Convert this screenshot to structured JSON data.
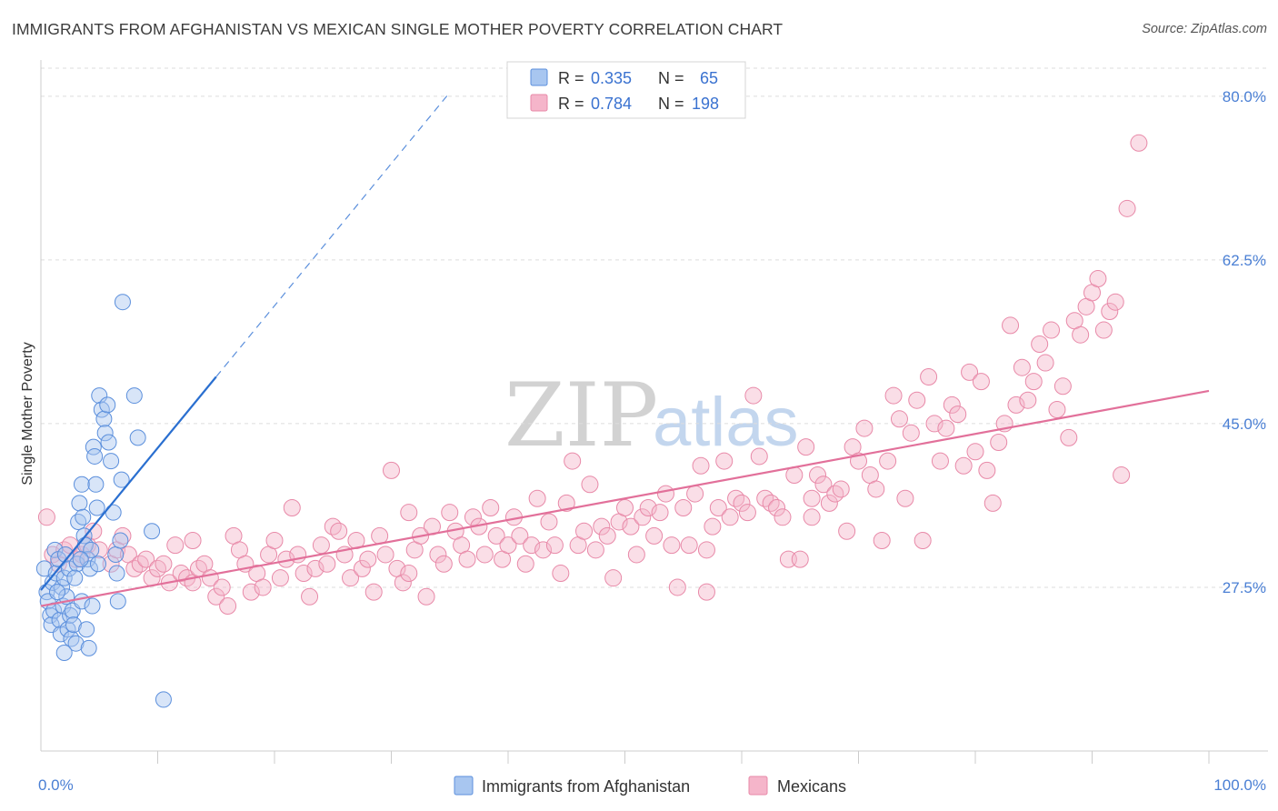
{
  "header": {
    "title": "IMMIGRANTS FROM AFGHANISTAN VS MEXICAN SINGLE MOTHER POVERTY CORRELATION CHART",
    "source": "Source: ZipAtlas.com"
  },
  "watermark": {
    "zip": "ZIP",
    "atlas": "atlas"
  },
  "colors": {
    "blue_fill": "#a8c6f0",
    "blue_stroke": "#5b8fdc",
    "blue_line": "#2a6fd0",
    "pink_fill": "#f5b5ca",
    "pink_stroke": "#e889a8",
    "pink_line": "#e2709a",
    "tick_text": "#4a7fd4",
    "grid": "#dddddd"
  },
  "legend": {
    "r_label": "R =",
    "n_label": "N =",
    "series": [
      {
        "name": "Immigrants from Afghanistan",
        "r": "0.335",
        "n": "65"
      },
      {
        "name": "Mexicans",
        "r": "0.784",
        "n": "198"
      }
    ]
  },
  "chart_data": {
    "type": "scatter",
    "title": "IMMIGRANTS FROM AFGHANISTAN VS MEXICAN SINGLE MOTHER POVERTY CORRELATION CHART",
    "xlabel": "",
    "ylabel": "Single Mother Poverty",
    "xlim": [
      0,
      100
    ],
    "ylim": [
      10,
      83
    ],
    "x_tick_labels": [
      {
        "value": 0,
        "label": "0.0%"
      },
      {
        "value": 100,
        "label": "100.0%"
      }
    ],
    "x_minor_ticks": [
      10,
      20,
      30,
      40,
      50,
      60,
      70,
      80,
      90
    ],
    "y_ticks": [
      {
        "value": 27.5,
        "label": "27.5%"
      },
      {
        "value": 45.0,
        "label": "45.0%"
      },
      {
        "value": 62.5,
        "label": "62.5%"
      },
      {
        "value": 80.0,
        "label": "80.0%"
      }
    ],
    "grid": true,
    "legend_position": "top-center",
    "series": [
      {
        "name": "Immigrants from Afghanistan",
        "r": 0.335,
        "n": 65,
        "trend": {
          "x0": 0,
          "y0": 27.2,
          "x1": 15,
          "y1": 50.0,
          "dash_to_x": 35,
          "dash_to_y": 80.4
        },
        "points": [
          [
            0.3,
            29.5
          ],
          [
            0.5,
            27.0
          ],
          [
            0.6,
            26.0
          ],
          [
            0.8,
            24.5
          ],
          [
            0.9,
            23.5
          ],
          [
            1.0,
            28.0
          ],
          [
            1.1,
            25.0
          ],
          [
            1.2,
            31.5
          ],
          [
            1.3,
            29.0
          ],
          [
            1.5,
            30.5
          ],
          [
            1.6,
            24.0
          ],
          [
            1.7,
            22.5
          ],
          [
            1.8,
            27.5
          ],
          [
            1.9,
            25.5
          ],
          [
            2.0,
            28.5
          ],
          [
            2.1,
            31.0
          ],
          [
            2.2,
            26.5
          ],
          [
            2.3,
            23.0
          ],
          [
            2.4,
            29.5
          ],
          [
            2.5,
            24.5
          ],
          [
            2.6,
            22.0
          ],
          [
            2.7,
            25.0
          ],
          [
            2.8,
            23.5
          ],
          [
            3.0,
            21.5
          ],
          [
            3.1,
            30.0
          ],
          [
            3.2,
            34.5
          ],
          [
            3.3,
            36.5
          ],
          [
            3.5,
            38.5
          ],
          [
            3.6,
            35.0
          ],
          [
            3.7,
            33.0
          ],
          [
            3.8,
            32.0
          ],
          [
            4.0,
            30.5
          ],
          [
            4.2,
            29.5
          ],
          [
            4.3,
            31.5
          ],
          [
            4.5,
            42.5
          ],
          [
            4.6,
            41.5
          ],
          [
            4.7,
            38.5
          ],
          [
            4.8,
            36.0
          ],
          [
            4.9,
            30.0
          ],
          [
            5.0,
            48.0
          ],
          [
            5.2,
            46.5
          ],
          [
            5.4,
            45.5
          ],
          [
            5.5,
            44.0
          ],
          [
            5.7,
            47.0
          ],
          [
            5.8,
            43.0
          ],
          [
            6.0,
            41.0
          ],
          [
            6.2,
            35.5
          ],
          [
            6.4,
            31.0
          ],
          [
            6.5,
            29.0
          ],
          [
            6.6,
            26.0
          ],
          [
            3.5,
            26.0
          ],
          [
            3.9,
            23.0
          ],
          [
            4.1,
            21.0
          ],
          [
            4.4,
            25.5
          ],
          [
            2.9,
            28.5
          ],
          [
            6.8,
            32.5
          ],
          [
            6.9,
            39.0
          ],
          [
            3.4,
            30.5
          ],
          [
            1.4,
            27.0
          ],
          [
            2.0,
            20.5
          ],
          [
            7.0,
            58.0
          ],
          [
            8.0,
            48.0
          ],
          [
            8.3,
            43.5
          ],
          [
            9.5,
            33.5
          ],
          [
            10.5,
            15.5
          ]
        ]
      },
      {
        "name": "Mexicans",
        "r": 0.784,
        "n": 198,
        "trend": {
          "x0": 0,
          "y0": 25.5,
          "x1": 100,
          "y1": 48.5
        },
        "points": [
          [
            0.5,
            35.0
          ],
          [
            1.0,
            31.0
          ],
          [
            1.5,
            30.0
          ],
          [
            2.0,
            31.5
          ],
          [
            2.5,
            32.0
          ],
          [
            3.0,
            30.5
          ],
          [
            3.5,
            31.0
          ],
          [
            4.0,
            32.0
          ],
          [
            4.5,
            33.5
          ],
          [
            5.0,
            31.5
          ],
          [
            6.0,
            30.0
          ],
          [
            6.5,
            31.5
          ],
          [
            7.0,
            33.0
          ],
          [
            7.5,
            31.0
          ],
          [
            8.0,
            29.5
          ],
          [
            8.5,
            30.0
          ],
          [
            9.0,
            30.5
          ],
          [
            9.5,
            28.5
          ],
          [
            10.0,
            29.5
          ],
          [
            10.5,
            30.0
          ],
          [
            11.0,
            28.0
          ],
          [
            11.5,
            32.0
          ],
          [
            12.0,
            29.0
          ],
          [
            12.5,
            28.5
          ],
          [
            13.0,
            28.0
          ],
          [
            13.5,
            29.5
          ],
          [
            14.0,
            30.0
          ],
          [
            14.5,
            28.5
          ],
          [
            15.0,
            26.5
          ],
          [
            15.5,
            27.5
          ],
          [
            16.0,
            25.5
          ],
          [
            16.5,
            33.0
          ],
          [
            17.0,
            31.5
          ],
          [
            17.5,
            30.0
          ],
          [
            18.0,
            27.0
          ],
          [
            18.5,
            29.0
          ],
          [
            19.0,
            27.5
          ],
          [
            19.5,
            31.0
          ],
          [
            20.0,
            32.5
          ],
          [
            20.5,
            28.5
          ],
          [
            21.0,
            30.5
          ],
          [
            21.5,
            36.0
          ],
          [
            22.0,
            31.0
          ],
          [
            22.5,
            29.0
          ],
          [
            23.0,
            26.5
          ],
          [
            23.5,
            29.5
          ],
          [
            24.0,
            32.0
          ],
          [
            24.5,
            30.0
          ],
          [
            25.0,
            34.0
          ],
          [
            25.5,
            33.5
          ],
          [
            26.0,
            31.0
          ],
          [
            26.5,
            28.5
          ],
          [
            27.0,
            32.5
          ],
          [
            27.5,
            29.5
          ],
          [
            28.0,
            30.5
          ],
          [
            28.5,
            27.0
          ],
          [
            29.0,
            33.0
          ],
          [
            29.5,
            31.0
          ],
          [
            30.0,
            40.0
          ],
          [
            30.5,
            29.5
          ],
          [
            31.0,
            28.0
          ],
          [
            31.5,
            35.5
          ],
          [
            32.0,
            31.5
          ],
          [
            32.5,
            33.0
          ],
          [
            33.0,
            26.5
          ],
          [
            33.5,
            34.0
          ],
          [
            34.0,
            31.0
          ],
          [
            34.5,
            30.0
          ],
          [
            35.0,
            35.5
          ],
          [
            35.5,
            33.5
          ],
          [
            36.0,
            32.0
          ],
          [
            36.5,
            30.5
          ],
          [
            37.0,
            35.0
          ],
          [
            37.5,
            34.0
          ],
          [
            38.0,
            31.0
          ],
          [
            38.5,
            36.0
          ],
          [
            39.0,
            33.0
          ],
          [
            39.5,
            30.5
          ],
          [
            40.0,
            32.0
          ],
          [
            40.5,
            35.0
          ],
          [
            41.0,
            33.0
          ],
          [
            41.5,
            30.0
          ],
          [
            42.0,
            32.0
          ],
          [
            42.5,
            37.0
          ],
          [
            43.0,
            31.5
          ],
          [
            43.5,
            34.5
          ],
          [
            44.0,
            32.0
          ],
          [
            44.5,
            29.0
          ],
          [
            45.0,
            36.5
          ],
          [
            45.5,
            41.0
          ],
          [
            46.0,
            32.0
          ],
          [
            46.5,
            33.5
          ],
          [
            47.0,
            38.5
          ],
          [
            47.5,
            31.5
          ],
          [
            48.0,
            34.0
          ],
          [
            48.5,
            33.0
          ],
          [
            49.0,
            28.5
          ],
          [
            49.5,
            34.5
          ],
          [
            50.0,
            36.0
          ],
          [
            50.5,
            34.0
          ],
          [
            51.0,
            31.0
          ],
          [
            51.5,
            35.0
          ],
          [
            52.0,
            36.0
          ],
          [
            52.5,
            33.0
          ],
          [
            53.0,
            35.5
          ],
          [
            53.5,
            37.5
          ],
          [
            54.0,
            32.0
          ],
          [
            54.5,
            27.5
          ],
          [
            55.0,
            36.0
          ],
          [
            55.5,
            32.0
          ],
          [
            56.0,
            37.5
          ],
          [
            56.5,
            40.5
          ],
          [
            57.0,
            31.5
          ],
          [
            57.5,
            34.0
          ],
          [
            58.0,
            36.0
          ],
          [
            58.5,
            41.0
          ],
          [
            59.0,
            35.0
          ],
          [
            59.5,
            37.0
          ],
          [
            60.0,
            36.5
          ],
          [
            60.5,
            35.5
          ],
          [
            61.0,
            48.0
          ],
          [
            61.5,
            41.5
          ],
          [
            62.0,
            37.0
          ],
          [
            62.5,
            36.5
          ],
          [
            63.0,
            36.0
          ],
          [
            63.5,
            35.0
          ],
          [
            64.0,
            30.5
          ],
          [
            64.5,
            39.5
          ],
          [
            65.0,
            30.5
          ],
          [
            65.5,
            42.5
          ],
          [
            66.0,
            37.0
          ],
          [
            66.5,
            39.5
          ],
          [
            67.0,
            38.5
          ],
          [
            67.5,
            36.5
          ],
          [
            68.0,
            37.5
          ],
          [
            68.5,
            38.0
          ],
          [
            69.0,
            33.5
          ],
          [
            69.5,
            42.5
          ],
          [
            70.0,
            41.0
          ],
          [
            70.5,
            44.5
          ],
          [
            71.0,
            39.5
          ],
          [
            71.5,
            38.0
          ],
          [
            72.0,
            32.5
          ],
          [
            72.5,
            41.0
          ],
          [
            73.0,
            48.0
          ],
          [
            73.5,
            45.5
          ],
          [
            74.0,
            37.0
          ],
          [
            74.5,
            44.0
          ],
          [
            75.0,
            47.5
          ],
          [
            75.5,
            32.5
          ],
          [
            76.0,
            50.0
          ],
          [
            76.5,
            45.0
          ],
          [
            77.0,
            41.0
          ],
          [
            77.5,
            44.5
          ],
          [
            78.0,
            47.0
          ],
          [
            78.5,
            46.0
          ],
          [
            79.0,
            40.5
          ],
          [
            79.5,
            50.5
          ],
          [
            80.0,
            42.0
          ],
          [
            80.5,
            49.5
          ],
          [
            81.0,
            40.0
          ],
          [
            81.5,
            36.5
          ],
          [
            82.0,
            43.0
          ],
          [
            82.5,
            45.0
          ],
          [
            83.0,
            55.5
          ],
          [
            83.5,
            47.0
          ],
          [
            84.0,
            51.0
          ],
          [
            84.5,
            47.5
          ],
          [
            85.0,
            49.5
          ],
          [
            85.5,
            53.5
          ],
          [
            86.0,
            51.5
          ],
          [
            86.5,
            55.0
          ],
          [
            87.0,
            46.5
          ],
          [
            87.5,
            49.0
          ],
          [
            88.0,
            43.5
          ],
          [
            88.5,
            56.0
          ],
          [
            89.0,
            54.5
          ],
          [
            89.5,
            57.5
          ],
          [
            90.0,
            59.0
          ],
          [
            90.5,
            60.5
          ],
          [
            91.0,
            55.0
          ],
          [
            91.5,
            57.0
          ],
          [
            92.0,
            58.0
          ],
          [
            92.5,
            39.5
          ],
          [
            93.0,
            68.0
          ],
          [
            94.0,
            75.0
          ],
          [
            66.0,
            35.0
          ],
          [
            57.0,
            27.0
          ],
          [
            31.5,
            29.0
          ],
          [
            13.0,
            32.5
          ]
        ]
      }
    ]
  }
}
